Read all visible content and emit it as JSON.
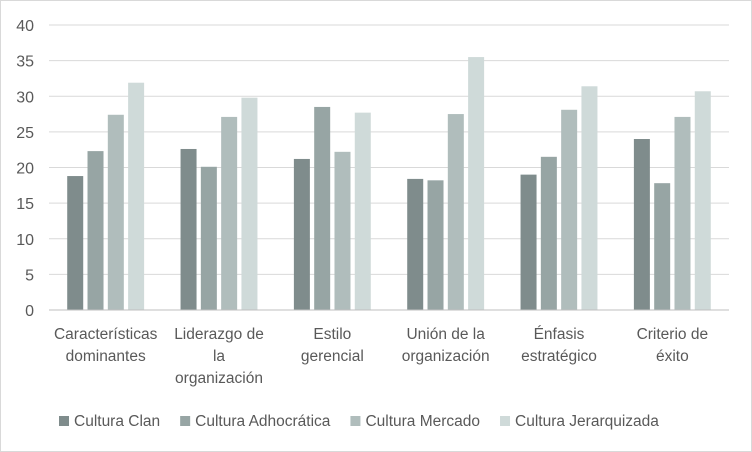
{
  "chart_data": {
    "type": "bar",
    "title": "",
    "xlabel": "",
    "ylabel": "",
    "ylim": [
      0,
      40
    ],
    "yticks": [
      "0",
      "5",
      "10",
      "15",
      "20",
      "25",
      "30",
      "35",
      "40"
    ],
    "grid": true,
    "legend_position": "bottom",
    "categories": [
      [
        "Características",
        "dominantes"
      ],
      [
        "Liderazgo de",
        "la",
        "organización"
      ],
      [
        "Estilo",
        "gerencial"
      ],
      [
        "Unión de la",
        "organización"
      ],
      [
        "Énfasis",
        "estratégico"
      ],
      [
        "Criterio de",
        "éxito"
      ]
    ],
    "series": [
      {
        "name": "Cultura Clan",
        "color": "#7f8c8c",
        "values": [
          18.8,
          22.6,
          21.2,
          18.4,
          19.0,
          24.0
        ]
      },
      {
        "name": "Cultura Adhocrática",
        "color": "#97a5a4",
        "values": [
          22.3,
          20.1,
          28.5,
          18.2,
          21.5,
          17.8
        ]
      },
      {
        "name": "Cultura Mercado",
        "color": "#b0bdbc",
        "values": [
          27.4,
          27.1,
          22.2,
          27.5,
          28.1,
          27.1
        ]
      },
      {
        "name": "Cultura Jerarquizada",
        "color": "#cfdad9",
        "values": [
          31.9,
          29.8,
          27.7,
          35.5,
          31.4,
          30.7
        ]
      }
    ]
  }
}
